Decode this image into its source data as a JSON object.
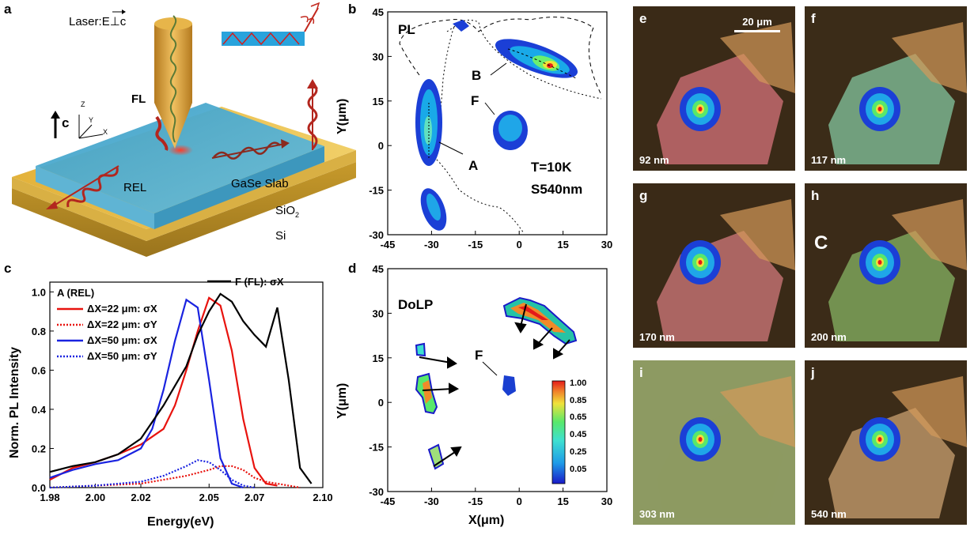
{
  "panel_a": {
    "letter": "a",
    "laser_label": "Laser:",
    "laser_field": "E⊥c",
    "fl_label": "FL",
    "rel_label": "REL",
    "axis_c_label": "c",
    "axis_x": "X",
    "axis_y": "Y",
    "axis_z": "Z",
    "slab_label": "GaSe Slab",
    "sio2_label": "SiO",
    "sio2_sub": "2",
    "si_label": "Si"
  },
  "panel_b": {
    "letter": "b",
    "tag": "PL",
    "temp": "T=10K",
    "sample": "S540nm",
    "label_A": "A",
    "label_B": "B",
    "label_F": "F",
    "ylabel": "Y(μm)"
  },
  "panel_c": {
    "letter": "c",
    "ylabel": "Norm. PL Intensity",
    "xlabel": "Energy(eV)"
  },
  "panel_d": {
    "letter": "d",
    "tag": "DoLP",
    "label_F": "F",
    "xlabel": "X(μm)",
    "ylabel": "Y(μm)",
    "colorbar_ticks": [
      "1.00",
      "0.85",
      "0.65",
      "0.45",
      "0.25",
      "0.05"
    ]
  },
  "tiles": {
    "scale_bar": "20 μm",
    "items": [
      {
        "letter": "e",
        "thickness": "92 nm",
        "bg": "#3a2a17"
      },
      {
        "letter": "f",
        "thickness": "117 nm",
        "bg": "#3b2c18"
      },
      {
        "letter": "g",
        "thickness": "170 nm",
        "bg": "#3a2a17"
      },
      {
        "letter": "h",
        "thickness": "200 nm",
        "bg": "#3b2b18"
      },
      {
        "letter": "i",
        "thickness": "303 nm",
        "bg": "#8d9a62"
      },
      {
        "letter": "j",
        "thickness": "540 nm",
        "bg": "#3c2c18"
      }
    ],
    "h_extra_label": "C"
  },
  "chart_data": [
    {
      "type": "line",
      "panel": "c",
      "xlabel": "Energy(eV)",
      "ylabel": "Norm. PL Intensity",
      "xlim": [
        1.98,
        2.1
      ],
      "ylim": [
        0,
        1.05
      ],
      "xticks": [
        1.98,
        2.0,
        2.02,
        2.05,
        2.07,
        2.1
      ],
      "xtick_labels": [
        "1.98",
        "2.00",
        "2.02",
        "2.05",
        "2.07",
        "2.10"
      ],
      "yticks": [
        0.0,
        0.2,
        0.4,
        0.6,
        0.8,
        1.0
      ],
      "ytick_labels": [
        "0.0",
        "0.2",
        "0.4",
        "0.6",
        "0.8",
        "1.0"
      ],
      "legend_title": "A (REL)",
      "series": [
        {
          "name": "ΔX=22 μm: σX",
          "color": "#e8130e",
          "dash": "solid",
          "x": [
            1.98,
            1.99,
            2.0,
            2.01,
            2.02,
            2.03,
            2.035,
            2.04,
            2.045,
            2.05,
            2.055,
            2.06,
            2.065,
            2.07,
            2.075,
            2.08
          ],
          "y": [
            0.04,
            0.1,
            0.13,
            0.17,
            0.22,
            0.3,
            0.42,
            0.6,
            0.8,
            0.97,
            0.93,
            0.7,
            0.35,
            0.1,
            0.02,
            0.01
          ]
        },
        {
          "name": "ΔX=22 μm: σY",
          "color": "#e8130e",
          "dash": "dotted",
          "x": [
            1.98,
            2.0,
            2.02,
            2.03,
            2.04,
            2.05,
            2.055,
            2.06,
            2.065,
            2.07,
            2.075,
            2.08,
            2.09
          ],
          "y": [
            0.0,
            0.01,
            0.02,
            0.04,
            0.06,
            0.09,
            0.11,
            0.11,
            0.09,
            0.05,
            0.03,
            0.02,
            0.0
          ]
        },
        {
          "name": "ΔX=50 μm: σX",
          "color": "#1a23e0",
          "dash": "solid",
          "x": [
            1.98,
            1.99,
            2.0,
            2.01,
            2.02,
            2.025,
            2.03,
            2.035,
            2.04,
            2.045,
            2.05,
            2.055,
            2.06,
            2.065
          ],
          "y": [
            0.05,
            0.09,
            0.12,
            0.14,
            0.2,
            0.3,
            0.5,
            0.75,
            0.96,
            0.92,
            0.55,
            0.15,
            0.02,
            0.0
          ]
        },
        {
          "name": "ΔX=50 μm: σY",
          "color": "#1a23e0",
          "dash": "dotted",
          "x": [
            1.98,
            2.0,
            2.02,
            2.03,
            2.04,
            2.045,
            2.05,
            2.055,
            2.06,
            2.065,
            2.07
          ],
          "y": [
            0.0,
            0.01,
            0.03,
            0.06,
            0.11,
            0.14,
            0.13,
            0.09,
            0.04,
            0.01,
            0.0
          ]
        },
        {
          "name": "F (FL): σX",
          "color": "#000000",
          "dash": "solid",
          "x": [
            1.98,
            1.99,
            2.0,
            2.01,
            2.02,
            2.03,
            2.04,
            2.045,
            2.05,
            2.055,
            2.06,
            2.065,
            2.07,
            2.075,
            2.08,
            2.085,
            2.09,
            2.095
          ],
          "y": [
            0.08,
            0.11,
            0.13,
            0.17,
            0.25,
            0.42,
            0.62,
            0.78,
            0.9,
            0.99,
            0.95,
            0.85,
            0.78,
            0.72,
            0.92,
            0.55,
            0.1,
            0.02
          ]
        }
      ]
    },
    {
      "type": "heatmap",
      "panel": "b",
      "title": "PL",
      "xlim": [
        -45,
        30
      ],
      "ylim": [
        -30,
        45
      ],
      "xticks": [
        -45,
        -30,
        -15,
        0,
        15,
        30
      ],
      "yticks": [
        -30,
        -15,
        0,
        15,
        30,
        45
      ],
      "ylabel": "Y(μm)",
      "spots": [
        {
          "label": "A",
          "x": -32,
          "y": 5,
          "intensity": 0.5
        },
        {
          "label": "B",
          "x": 10,
          "y": 27,
          "intensity": 1.0
        },
        {
          "label": "F",
          "x": -2,
          "y": 7,
          "intensity": 0.35
        },
        {
          "label": "",
          "x": -29,
          "y": -20,
          "intensity": 0.3
        }
      ]
    },
    {
      "type": "heatmap",
      "panel": "d",
      "title": "DoLP",
      "xlim": [
        -45,
        30
      ],
      "ylim": [
        -30,
        45
      ],
      "xticks": [
        -45,
        -30,
        -15,
        0,
        15,
        30
      ],
      "yticks": [
        -30,
        -15,
        0,
        15,
        30,
        45
      ],
      "xlabel": "X(μm)",
      "ylabel": "Y(μm)",
      "colorbar": {
        "min": 0.05,
        "max": 1.0,
        "ticks": [
          1.0,
          0.85,
          0.65,
          0.45,
          0.25,
          0.05
        ]
      }
    }
  ]
}
